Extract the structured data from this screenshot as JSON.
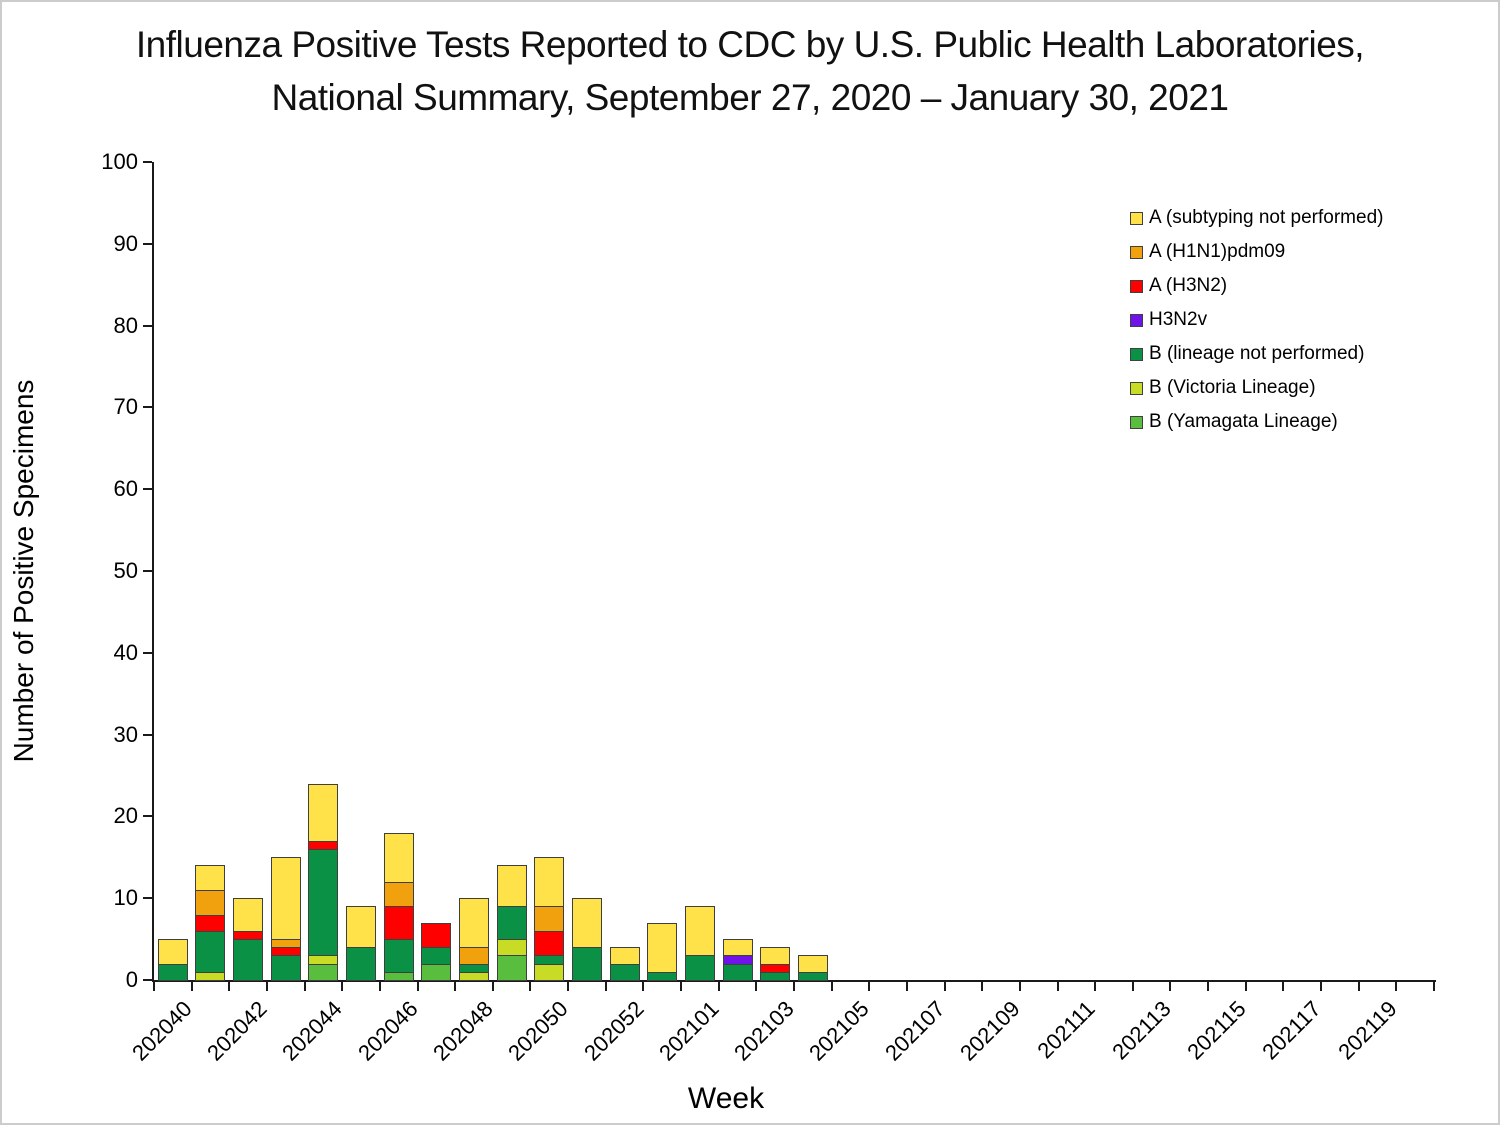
{
  "title": {
    "line1": "Influenza Positive Tests Reported to CDC by U.S. Public Health Laboratories,",
    "line2": "National Summary, September 27, 2020 – January 30, 2021"
  },
  "chart_data": {
    "type": "bar",
    "stacked": true,
    "title": "Influenza Positive Tests Reported to CDC by U.S. Public Health Laboratories, National Summary, September 27, 2020 – January 30, 2021",
    "xlabel": "Week",
    "ylabel": "Number of Positive Specimens",
    "ylim": [
      0,
      100
    ],
    "ytick_step": 10,
    "grid": false,
    "legend_position": "upper right",
    "xtick_label_every": 2,
    "categories": [
      "202040",
      "202041",
      "202042",
      "202043",
      "202044",
      "202045",
      "202046",
      "202047",
      "202048",
      "202049",
      "202050",
      "202051",
      "202052",
      "202053",
      "202101",
      "202102",
      "202103",
      "202104",
      "202105",
      "202106",
      "202107",
      "202108",
      "202109",
      "202110",
      "202111",
      "202112",
      "202113",
      "202114",
      "202115",
      "202116",
      "202117",
      "202118",
      "202119",
      "202120"
    ],
    "stack_order_bottom_to_top": [
      "B (Yamagata Lineage)",
      "B (Victoria Lineage)",
      "B (lineage not performed)",
      "H3N2v",
      "A (H3N2)",
      "A (H1N1)pdm09",
      "A (subtyping not performed)"
    ],
    "series": [
      {
        "name": "A (subtyping not performed)",
        "color": "#FFE24A",
        "values": [
          3,
          3,
          4,
          10,
          7,
          5,
          6,
          0,
          6,
          5,
          6,
          6,
          2,
          6,
          6,
          2,
          2,
          2,
          0,
          0,
          0,
          0,
          0,
          0,
          0,
          0,
          0,
          0,
          0,
          0,
          0,
          0,
          0,
          0
        ]
      },
      {
        "name": "A (H1N1)pdm09",
        "color": "#F2A10E",
        "values": [
          0,
          3,
          0,
          1,
          0,
          0,
          3,
          0,
          2,
          0,
          3,
          0,
          0,
          0,
          0,
          0,
          0,
          0,
          0,
          0,
          0,
          0,
          0,
          0,
          0,
          0,
          0,
          0,
          0,
          0,
          0,
          0,
          0,
          0
        ]
      },
      {
        "name": "A (H3N2)",
        "color": "#FE0000",
        "values": [
          0,
          2,
          1,
          1,
          1,
          0,
          4,
          3,
          0,
          0,
          3,
          0,
          0,
          0,
          0,
          0,
          1,
          0,
          0,
          0,
          0,
          0,
          0,
          0,
          0,
          0,
          0,
          0,
          0,
          0,
          0,
          0,
          0,
          0
        ]
      },
      {
        "name": "H3N2v",
        "color": "#7113E8",
        "values": [
          0,
          0,
          0,
          0,
          0,
          0,
          0,
          0,
          0,
          0,
          0,
          0,
          0,
          0,
          0,
          1,
          0,
          0,
          0,
          0,
          0,
          0,
          0,
          0,
          0,
          0,
          0,
          0,
          0,
          0,
          0,
          0,
          0,
          0
        ]
      },
      {
        "name": "B (lineage not performed)",
        "color": "#0B9145",
        "values": [
          2,
          5,
          5,
          3,
          13,
          4,
          4,
          2,
          1,
          4,
          1,
          4,
          2,
          1,
          3,
          2,
          1,
          1,
          0,
          0,
          0,
          0,
          0,
          0,
          0,
          0,
          0,
          0,
          0,
          0,
          0,
          0,
          0,
          0
        ]
      },
      {
        "name": "B (Victoria Lineage)",
        "color": "#C8DB25",
        "values": [
          0,
          1,
          0,
          0,
          1,
          0,
          0,
          0,
          1,
          2,
          2,
          0,
          0,
          0,
          0,
          0,
          0,
          0,
          0,
          0,
          0,
          0,
          0,
          0,
          0,
          0,
          0,
          0,
          0,
          0,
          0,
          0,
          0,
          0
        ]
      },
      {
        "name": "B (Yamagata Lineage)",
        "color": "#59BD3E",
        "values": [
          0,
          0,
          0,
          0,
          2,
          0,
          1,
          2,
          0,
          3,
          0,
          0,
          0,
          0,
          0,
          0,
          0,
          0,
          0,
          0,
          0,
          0,
          0,
          0,
          0,
          0,
          0,
          0,
          0,
          0,
          0,
          0,
          0,
          0
        ]
      }
    ],
    "totals": [
      5,
      14,
      10,
      15,
      24,
      9,
      18,
      7,
      10,
      14,
      15,
      10,
      4,
      7,
      9,
      5,
      4,
      3,
      0,
      0,
      0,
      0,
      0,
      0,
      0,
      0,
      0,
      0,
      0,
      0,
      0,
      0,
      0,
      0
    ]
  }
}
